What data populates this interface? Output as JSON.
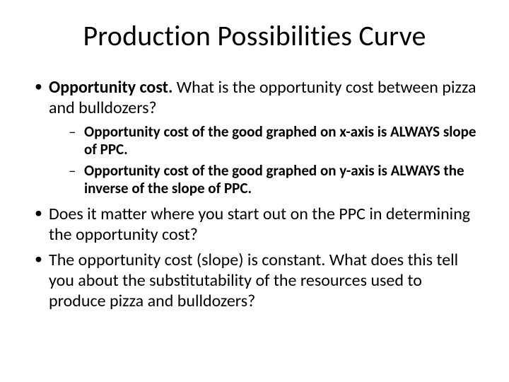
{
  "title": "Production Possibilities Curve",
  "bullets": {
    "b1_bold": "Opportunity cost.",
    "b1_rest": "  What is the opportunity cost between pizza and bulldozers?",
    "s1": "Opportunity cost of the good graphed on x-axis is ALWAYS slope of PPC.",
    "s2": "Opportunity cost of the good graphed on y-axis is ALWAYS the inverse of the slope of PPC.",
    "b2": "Does it matter where you start out on the PPC in determining the opportunity cost?",
    "b3": "The opportunity cost (slope) is constant.  What does this tell you about the substitutability of the resources used to produce pizza and bulldozers?"
  }
}
